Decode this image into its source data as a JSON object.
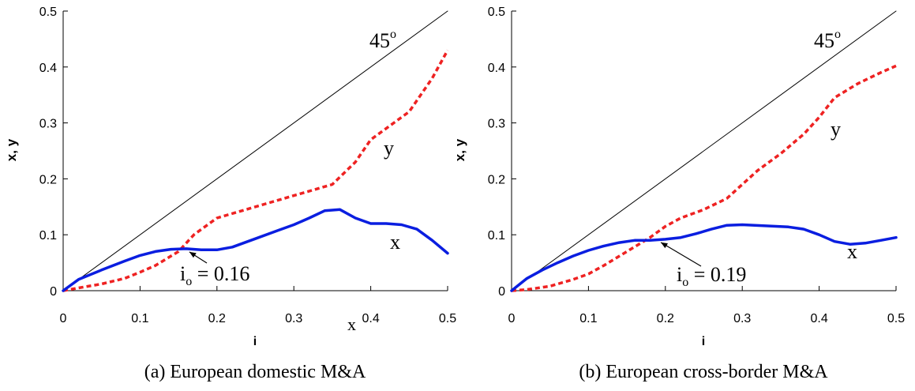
{
  "chart_data": [
    {
      "type": "line",
      "caption": "(a) European domestic M&A",
      "xlabel": "i",
      "ylabel": "x, y",
      "xlim": [
        0,
        0.5
      ],
      "ylim": [
        0,
        0.5
      ],
      "xticks": [
        "0",
        "0.1",
        "0.2",
        "0.3",
        "0.4",
        "0.5"
      ],
      "yticks": [
        "0",
        "0.1",
        "0.2",
        "0.3",
        "0.4",
        "0.5"
      ],
      "stray_tick_text": "x",
      "legend": "none",
      "grid": false,
      "series": [
        {
          "name": "45",
          "superscript": "o",
          "style": "thin-solid",
          "color": "#000000",
          "x": [
            0,
            0.5
          ],
          "y": [
            0,
            0.5
          ]
        },
        {
          "name": "y",
          "style": "dashed",
          "color": "#ee2222",
          "x": [
            0,
            0.02,
            0.05,
            0.08,
            0.1,
            0.12,
            0.15,
            0.17,
            0.2,
            0.25,
            0.3,
            0.35,
            0.38,
            0.4,
            0.45,
            0.48,
            0.5
          ],
          "y": [
            0,
            0.005,
            0.012,
            0.022,
            0.033,
            0.045,
            0.07,
            0.1,
            0.13,
            0.15,
            0.17,
            0.19,
            0.23,
            0.27,
            0.32,
            0.38,
            0.43
          ]
        },
        {
          "name": "x",
          "style": "thick-solid",
          "color": "#0a1ee0",
          "x": [
            0,
            0.02,
            0.05,
            0.08,
            0.1,
            0.12,
            0.14,
            0.16,
            0.18,
            0.2,
            0.22,
            0.25,
            0.28,
            0.3,
            0.32,
            0.34,
            0.36,
            0.38,
            0.4,
            0.42,
            0.44,
            0.46,
            0.48,
            0.5
          ],
          "y": [
            0,
            0.02,
            0.037,
            0.053,
            0.063,
            0.07,
            0.074,
            0.075,
            0.073,
            0.073,
            0.078,
            0.093,
            0.108,
            0.118,
            0.13,
            0.143,
            0.145,
            0.13,
            0.12,
            0.12,
            0.118,
            0.11,
            0.09,
            0.067
          ]
        }
      ],
      "annotations": [
        {
          "text": "i",
          "subscript": "o",
          "value_text": " = 0.16",
          "x": 0.16,
          "y": 0.075
        }
      ]
    },
    {
      "type": "line",
      "caption": "(b) European cross-border M&A",
      "xlabel": "i",
      "ylabel": "x, y",
      "xlim": [
        0,
        0.5
      ],
      "ylim": [
        0,
        0.5
      ],
      "xticks": [
        "0",
        "0.1",
        "0.2",
        "0.3",
        "0.4",
        "0.5"
      ],
      "yticks": [
        "0",
        "0.1",
        "0.2",
        "0.3",
        "0.4",
        "0.5"
      ],
      "legend": "none",
      "grid": false,
      "series": [
        {
          "name": "45",
          "superscript": "o",
          "style": "thin-solid",
          "color": "#000000",
          "x": [
            0,
            0.5
          ],
          "y": [
            0,
            0.5
          ]
        },
        {
          "name": "y",
          "style": "dashed",
          "color": "#ee2222",
          "x": [
            0,
            0.02,
            0.05,
            0.08,
            0.1,
            0.12,
            0.15,
            0.18,
            0.2,
            0.22,
            0.25,
            0.28,
            0.3,
            0.32,
            0.35,
            0.38,
            0.4,
            0.42,
            0.45,
            0.48,
            0.5
          ],
          "y": [
            0,
            0.002,
            0.008,
            0.02,
            0.03,
            0.045,
            0.07,
            0.095,
            0.115,
            0.13,
            0.145,
            0.165,
            0.19,
            0.215,
            0.245,
            0.28,
            0.31,
            0.345,
            0.37,
            0.39,
            0.402
          ]
        },
        {
          "name": "x",
          "style": "thick-solid",
          "color": "#0a1ee0",
          "x": [
            0,
            0.02,
            0.04,
            0.06,
            0.08,
            0.1,
            0.12,
            0.14,
            0.16,
            0.18,
            0.2,
            0.22,
            0.24,
            0.26,
            0.28,
            0.3,
            0.33,
            0.36,
            0.38,
            0.4,
            0.42,
            0.44,
            0.46,
            0.48,
            0.5
          ],
          "y": [
            0,
            0.022,
            0.037,
            0.05,
            0.062,
            0.072,
            0.08,
            0.086,
            0.09,
            0.09,
            0.092,
            0.095,
            0.102,
            0.11,
            0.117,
            0.118,
            0.116,
            0.114,
            0.11,
            0.1,
            0.088,
            0.083,
            0.085,
            0.09,
            0.095
          ]
        }
      ],
      "annotations": [
        {
          "text": "i",
          "subscript": "o",
          "value_text": " = 0.19",
          "x": 0.19,
          "y": 0.092
        }
      ]
    }
  ]
}
